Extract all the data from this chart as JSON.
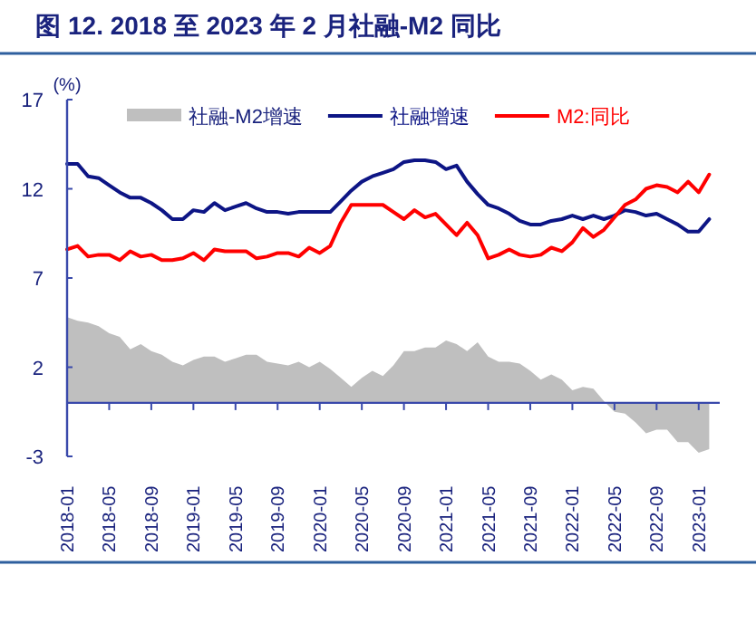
{
  "chart_data": {
    "type": "line",
    "title": "图 12. 2018 至 2023 年 2 月社融-M2 同比",
    "ylabel": "(%)",
    "x": [
      "2018-01",
      "2018-02",
      "2018-03",
      "2018-04",
      "2018-05",
      "2018-06",
      "2018-07",
      "2018-08",
      "2018-09",
      "2018-10",
      "2018-11",
      "2018-12",
      "2019-01",
      "2019-02",
      "2019-03",
      "2019-04",
      "2019-05",
      "2019-06",
      "2019-07",
      "2019-08",
      "2019-09",
      "2019-10",
      "2019-11",
      "2019-12",
      "2020-01",
      "2020-02",
      "2020-03",
      "2020-04",
      "2020-05",
      "2020-06",
      "2020-07",
      "2020-08",
      "2020-09",
      "2020-10",
      "2020-11",
      "2020-12",
      "2021-01",
      "2021-02",
      "2021-03",
      "2021-04",
      "2021-05",
      "2021-06",
      "2021-07",
      "2021-08",
      "2021-09",
      "2021-10",
      "2021-11",
      "2021-12",
      "2022-01",
      "2022-02",
      "2022-03",
      "2022-04",
      "2022-05",
      "2022-06",
      "2022-07",
      "2022-08",
      "2022-09",
      "2022-10",
      "2022-11",
      "2022-12",
      "2023-01",
      "2023-02"
    ],
    "series": [
      {
        "name": "社融-M2增速",
        "type": "area",
        "color": "#bfbfbf",
        "values": [
          4.8,
          4.6,
          4.5,
          4.3,
          3.9,
          3.7,
          3.0,
          3.3,
          2.9,
          2.7,
          2.3,
          2.1,
          2.4,
          2.6,
          2.6,
          2.3,
          2.5,
          2.7,
          2.7,
          2.3,
          2.2,
          2.1,
          2.3,
          2.0,
          2.3,
          1.9,
          1.4,
          0.9,
          1.4,
          1.8,
          1.5,
          2.1,
          2.9,
          2.9,
          3.1,
          3.1,
          3.5,
          3.3,
          2.9,
          3.4,
          2.6,
          2.3,
          2.3,
          2.2,
          1.8,
          1.3,
          1.6,
          1.3,
          0.7,
          0.9,
          0.8,
          0.1,
          -0.5,
          -0.6,
          -1.1,
          -1.7,
          -1.5,
          -1.5,
          -2.2,
          -2.2,
          -2.8,
          -2.6
        ]
      },
      {
        "name": "社融增速",
        "color": "#0d1585",
        "values": [
          13.4,
          13.4,
          12.7,
          12.6,
          12.2,
          11.8,
          11.5,
          11.5,
          11.2,
          10.8,
          10.3,
          10.3,
          10.8,
          10.7,
          11.2,
          10.8,
          11.0,
          11.2,
          10.9,
          10.7,
          10.7,
          10.6,
          10.7,
          10.7,
          10.7,
          10.7,
          11.3,
          11.9,
          12.4,
          12.7,
          12.9,
          13.1,
          13.5,
          13.6,
          13.6,
          13.5,
          13.1,
          13.3,
          12.4,
          11.7,
          11.1,
          10.9,
          10.6,
          10.2,
          10.0,
          10.0,
          10.2,
          10.3,
          10.5,
          10.3,
          10.5,
          10.3,
          10.5,
          10.8,
          10.7,
          10.5,
          10.6,
          10.3,
          10.0,
          9.6,
          9.6,
          10.3
        ]
      },
      {
        "name": "M2:同比",
        "color": "#ff0000",
        "values": [
          8.6,
          8.8,
          8.2,
          8.3,
          8.3,
          8.0,
          8.5,
          8.2,
          8.3,
          8.0,
          8.0,
          8.1,
          8.4,
          8.0,
          8.6,
          8.5,
          8.5,
          8.5,
          8.1,
          8.2,
          8.4,
          8.4,
          8.2,
          8.7,
          8.4,
          8.8,
          10.1,
          11.1,
          11.1,
          11.1,
          11.1,
          10.7,
          10.3,
          10.8,
          10.4,
          10.6,
          10.0,
          9.4,
          10.1,
          9.4,
          8.1,
          8.3,
          8.6,
          8.3,
          8.2,
          8.3,
          8.7,
          8.5,
          9.0,
          9.8,
          9.3,
          9.7,
          10.4,
          11.1,
          11.4,
          12.0,
          12.2,
          12.1,
          11.8,
          12.4,
          11.8,
          12.8
        ]
      }
    ],
    "xlim": [
      "2018-01",
      "2023-03"
    ],
    "xticks": [
      "2018-01",
      "2018-05",
      "2018-09",
      "2019-01",
      "2019-05",
      "2019-09",
      "2020-01",
      "2020-05",
      "2020-09",
      "2021-01",
      "2021-05",
      "2021-09",
      "2022-01",
      "2022-05",
      "2022-09",
      "2023-01"
    ],
    "ylim": [
      -3,
      17
    ],
    "yticks": [
      -3,
      2,
      7,
      12,
      17
    ],
    "ref_lines": [
      {
        "axis": "y",
        "value": 0,
        "color": "#3949ab",
        "line_style": "solid"
      }
    ],
    "legend": "top",
    "grid": false,
    "line_style": "solid",
    "marker": "none"
  }
}
